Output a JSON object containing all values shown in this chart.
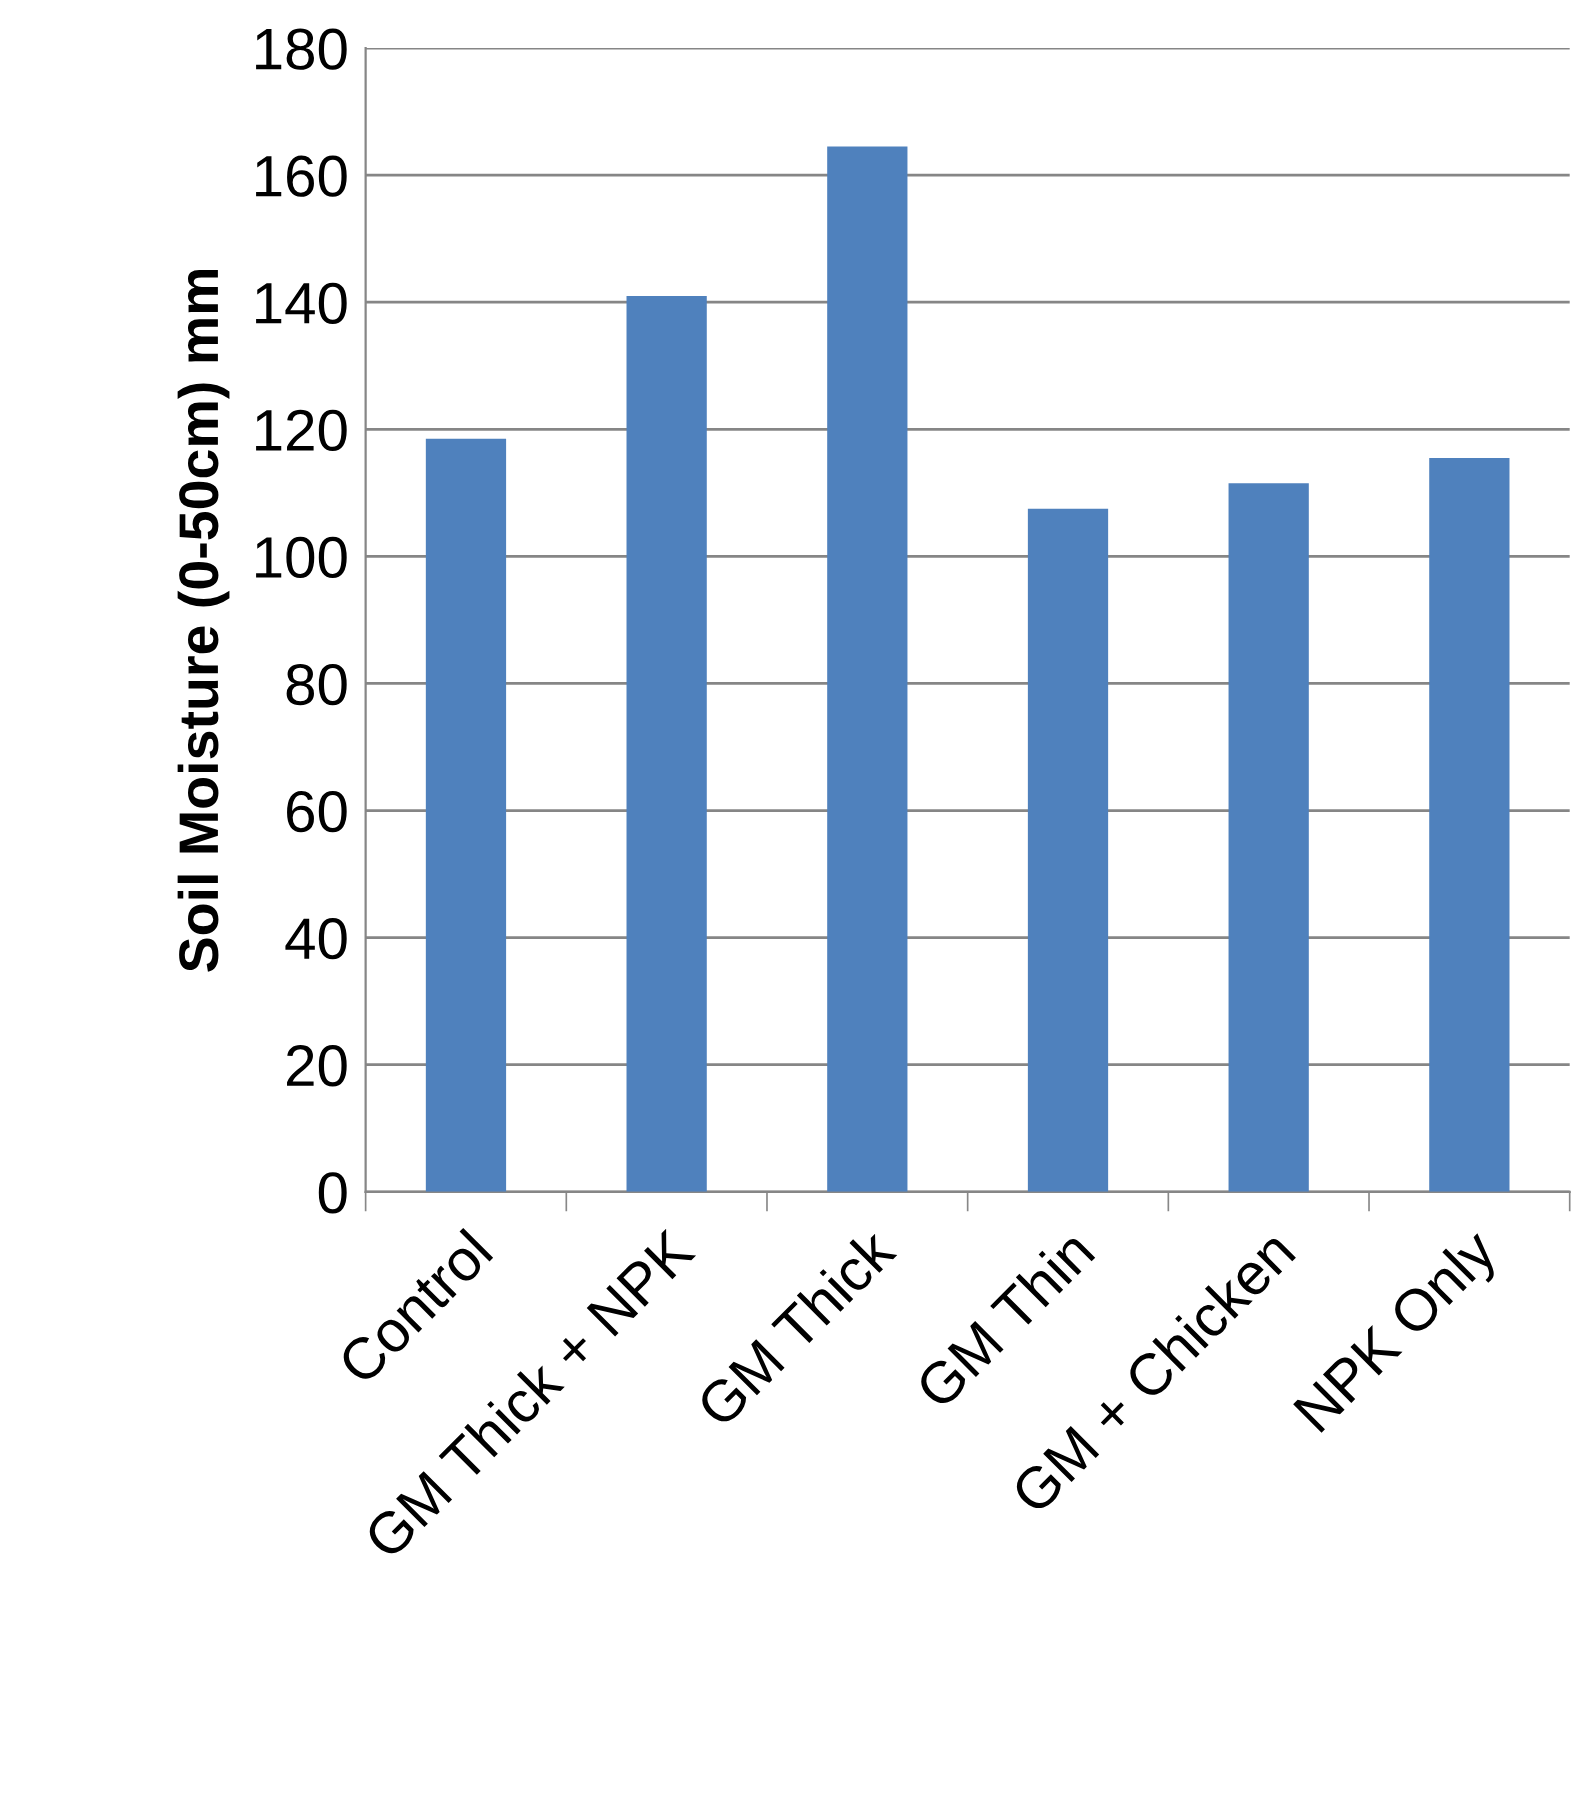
{
  "chart_data": {
    "type": "bar",
    "ylabel": "Soil Moisture (0-50cm) mm",
    "categories": [
      "Control",
      "GM Thick + NPK",
      "GM Thick",
      "GM Thin",
      "GM + Chicken",
      "NPK Only"
    ],
    "values": [
      118.5,
      141,
      164.5,
      107.5,
      111.5,
      115.5
    ],
    "color": "#4f81bd",
    "ylim": [
      0,
      180
    ],
    "yticks": [
      0,
      20,
      40,
      60,
      80,
      100,
      120,
      140,
      160,
      180
    ],
    "grid": "y",
    "legend": false
  }
}
